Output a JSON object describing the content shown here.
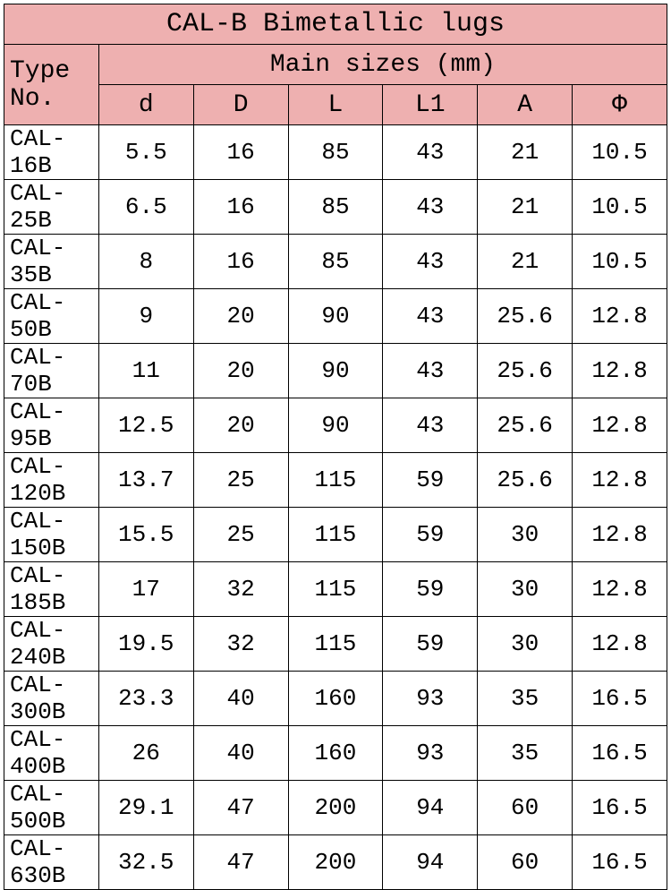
{
  "table": {
    "title": "CAL-B Bimetallic lugs",
    "main_header": "Main sizes (mm)",
    "type_header": "Type No.",
    "columns": [
      "d",
      "D",
      "L",
      "L1",
      "A",
      "Φ"
    ],
    "rows": [
      {
        "type": "CAL-16B",
        "d": "5.5",
        "D": "16",
        "L": "85",
        "L1": "43",
        "A": "21",
        "Phi": "10.5"
      },
      {
        "type": "CAL-25B",
        "d": "6.5",
        "D": "16",
        "L": "85",
        "L1": "43",
        "A": "21",
        "Phi": "10.5"
      },
      {
        "type": "CAL-35B",
        "d": "8",
        "D": "16",
        "L": "85",
        "L1": "43",
        "A": "21",
        "Phi": "10.5"
      },
      {
        "type": "CAL-50B",
        "d": "9",
        "D": "20",
        "L": "90",
        "L1": "43",
        "A": "25.6",
        "Phi": "12.8"
      },
      {
        "type": "CAL-70B",
        "d": "11",
        "D": "20",
        "L": "90",
        "L1": "43",
        "A": "25.6",
        "Phi": "12.8"
      },
      {
        "type": "CAL-95B",
        "d": "12.5",
        "D": "20",
        "L": "90",
        "L1": "43",
        "A": "25.6",
        "Phi": "12.8"
      },
      {
        "type": "CAL-120B",
        "d": "13.7",
        "D": "25",
        "L": "115",
        "L1": "59",
        "A": "25.6",
        "Phi": "12.8"
      },
      {
        "type": "CAL-150B",
        "d": "15.5",
        "D": "25",
        "L": "115",
        "L1": "59",
        "A": "30",
        "Phi": "12.8"
      },
      {
        "type": "CAL-185B",
        "d": "17",
        "D": "32",
        "L": "115",
        "L1": "59",
        "A": "30",
        "Phi": "12.8"
      },
      {
        "type": "CAL-240B",
        "d": "19.5",
        "D": "32",
        "L": "115",
        "L1": "59",
        "A": "30",
        "Phi": "12.8"
      },
      {
        "type": "CAL-300B",
        "d": "23.3",
        "D": "40",
        "L": "160",
        "L1": "93",
        "A": "35",
        "Phi": "16.5"
      },
      {
        "type": "CAL-400B",
        "d": "26",
        "D": "40",
        "L": "160",
        "L1": "93",
        "A": "35",
        "Phi": "16.5"
      },
      {
        "type": "CAL-500B",
        "d": "29.1",
        "D": "47",
        "L": "200",
        "L1": "94",
        "A": "60",
        "Phi": "16.5"
      },
      {
        "type": "CAL-630B",
        "d": "32.5",
        "D": "47",
        "L": "200",
        "L1": "94",
        "A": "60",
        "Phi": "16.5"
      }
    ],
    "header_bg": "#eeb0b0",
    "border_color": "#000000",
    "text_color": "#000000",
    "font_family": "Courier New, monospace",
    "title_fontsize": 30,
    "header_fontsize": 28,
    "cell_fontsize": 26
  }
}
